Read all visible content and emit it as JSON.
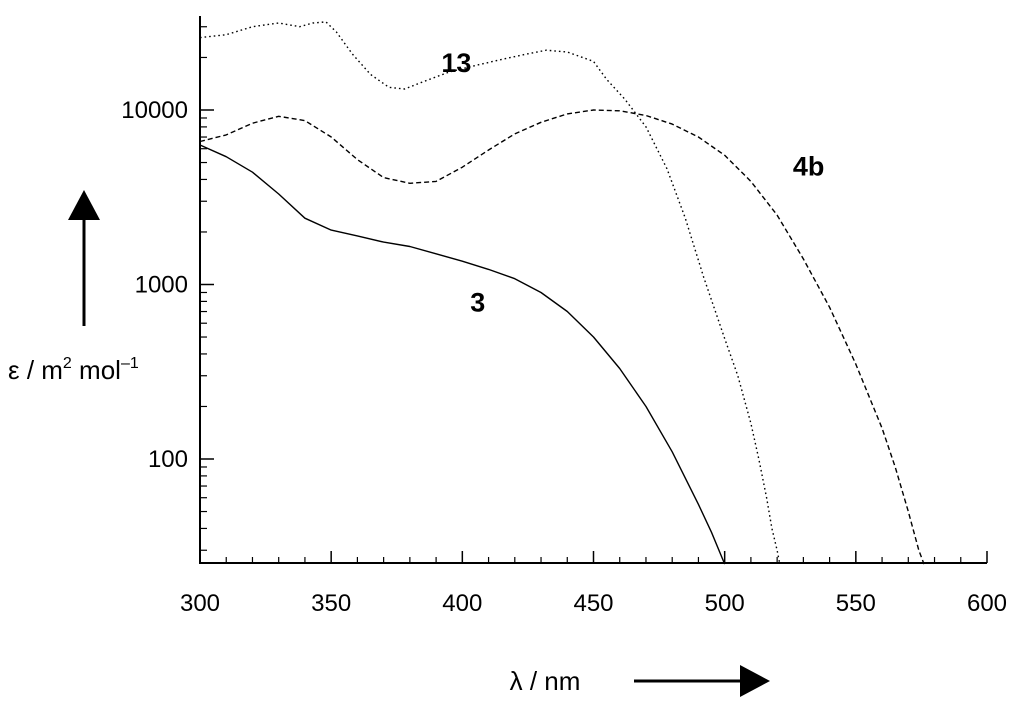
{
  "chart_data": {
    "type": "line",
    "title": "",
    "xlabel": "λ / nm",
    "ylabel": "ε / m² mol⁻¹",
    "ylabel_parts": {
      "base": "ε / m",
      "sup1": "2",
      "mid": " mol",
      "sup2": "–1"
    },
    "xscale": "linear",
    "yscale": "log",
    "xlim": [
      300,
      600
    ],
    "ylim": [
      25,
      32000
    ],
    "x_ticks": [
      300,
      350,
      400,
      450,
      500,
      550,
      600
    ],
    "x_tick_labels": [
      "300",
      "350",
      "400",
      "450",
      "500",
      "550",
      "600"
    ],
    "y_ticks_labeled": [
      100,
      1000,
      10000
    ],
    "y_tick_labels": [
      "100",
      "1000",
      "10000"
    ],
    "grid": false,
    "legend": "none",
    "series": [
      {
        "name": "13",
        "style": "dotted",
        "points": [
          [
            300,
            26000
          ],
          [
            310,
            27000
          ],
          [
            320,
            30000
          ],
          [
            330,
            31500
          ],
          [
            338,
            30000
          ],
          [
            343,
            31500
          ],
          [
            348,
            32000
          ],
          [
            352,
            28000
          ],
          [
            358,
            21000
          ],
          [
            365,
            16000
          ],
          [
            372,
            13500
          ],
          [
            378,
            13200
          ],
          [
            385,
            14500
          ],
          [
            395,
            16500
          ],
          [
            405,
            18000
          ],
          [
            415,
            19500
          ],
          [
            425,
            21000
          ],
          [
            432,
            22000
          ],
          [
            440,
            21500
          ],
          [
            450,
            19000
          ],
          [
            455,
            15000
          ],
          [
            462,
            11500
          ],
          [
            470,
            8000
          ],
          [
            478,
            4600
          ],
          [
            485,
            2400
          ],
          [
            492,
            1100
          ],
          [
            500,
            490
          ],
          [
            505,
            300
          ],
          [
            510,
            160
          ],
          [
            513,
            100
          ],
          [
            516,
            60
          ],
          [
            518,
            40
          ],
          [
            520,
            30
          ],
          [
            521,
            25
          ]
        ],
        "label_at": [
          392,
          16500
        ]
      },
      {
        "name": "4b",
        "style": "dashed",
        "points": [
          [
            300,
            6600
          ],
          [
            310,
            7200
          ],
          [
            320,
            8400
          ],
          [
            330,
            9200
          ],
          [
            340,
            8700
          ],
          [
            350,
            7000
          ],
          [
            360,
            5200
          ],
          [
            370,
            4100
          ],
          [
            380,
            3800
          ],
          [
            390,
            3900
          ],
          [
            400,
            4700
          ],
          [
            410,
            5900
          ],
          [
            420,
            7300
          ],
          [
            430,
            8500
          ],
          [
            440,
            9500
          ],
          [
            450,
            10000
          ],
          [
            460,
            9900
          ],
          [
            470,
            9300
          ],
          [
            480,
            8300
          ],
          [
            490,
            7000
          ],
          [
            500,
            5500
          ],
          [
            510,
            3900
          ],
          [
            520,
            2500
          ],
          [
            530,
            1400
          ],
          [
            540,
            740
          ],
          [
            550,
            350
          ],
          [
            560,
            150
          ],
          [
            565,
            90
          ],
          [
            570,
            50
          ],
          [
            574,
            30
          ],
          [
            576,
            25
          ]
        ],
        "label_at": [
          526,
          4200
        ]
      },
      {
        "name": "3",
        "style": "solid",
        "points": [
          [
            300,
            6300
          ],
          [
            310,
            5400
          ],
          [
            320,
            4400
          ],
          [
            330,
            3300
          ],
          [
            340,
            2400
          ],
          [
            350,
            2050
          ],
          [
            360,
            1900
          ],
          [
            370,
            1750
          ],
          [
            380,
            1650
          ],
          [
            390,
            1500
          ],
          [
            400,
            1360
          ],
          [
            410,
            1220
          ],
          [
            420,
            1080
          ],
          [
            430,
            900
          ],
          [
            440,
            700
          ],
          [
            450,
            500
          ],
          [
            460,
            330
          ],
          [
            470,
            200
          ],
          [
            480,
            110
          ],
          [
            490,
            55
          ],
          [
            495,
            38
          ],
          [
            500,
            25
          ]
        ],
        "label_at": [
          403,
          700
        ]
      }
    ]
  }
}
